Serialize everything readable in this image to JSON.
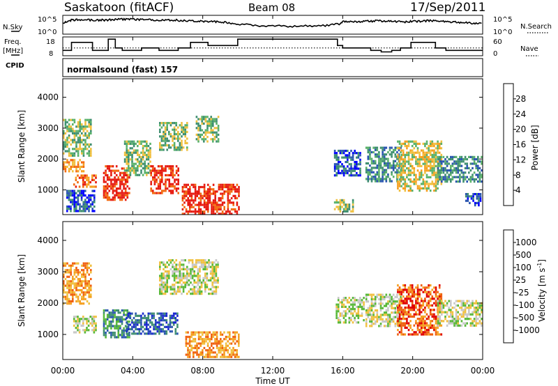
{
  "header": {
    "station": "Saskatoon (fitACF)",
    "beam": "Beam 08",
    "date": "17/Sep/2011"
  },
  "panel_labels": {
    "nsky": "N.Sky",
    "nsearch": "N.Search",
    "freq_line1": "Freq.",
    "freq_line2": "[MHz]",
    "nave": "Nave",
    "cpid": "CPID",
    "cpid_value": "normalsound (fast) 157"
  },
  "colors": {
    "power": [
      "#0000ff",
      "#2a55b0",
      "#3f8f70",
      "#5ab26a",
      "#f0c040",
      "#f5a020",
      "#f36a10",
      "#e61a10"
    ],
    "velocity": [
      "#e00000",
      "#f06010",
      "#f5a020",
      "#f0c040",
      "#c8c8c8",
      "#58b838",
      "#3f8f70",
      "#2a55b0",
      "#1a28d0"
    ]
  },
  "chart_data": [
    {
      "type": "line",
      "panel": "noise",
      "y_left_label": "N.Sky",
      "y_right_label": "N.Search",
      "y_left_ticks": [
        "10^5",
        "10^0"
      ],
      "y_right_ticks": [
        "10^5",
        "10^0"
      ],
      "x_hours": [
        0,
        0.3,
        0.6,
        1,
        1.5,
        2,
        2.5,
        3,
        3.5,
        4,
        4.5,
        5,
        5.5,
        6,
        6.5,
        7,
        7.5,
        8,
        8.5,
        9,
        9.5,
        10,
        11,
        12,
        13,
        14,
        15,
        15.8,
        16,
        16.5,
        17,
        17.5,
        18,
        18.5,
        19,
        19.5,
        20,
        20.5,
        21,
        21.5,
        22,
        22.5,
        23,
        23.5,
        24
      ],
      "sky_level": [
        0.55,
        0.75,
        0.8,
        0.82,
        0.8,
        0.78,
        0.8,
        0.82,
        0.85,
        0.83,
        0.82,
        0.8,
        0.78,
        0.8,
        0.78,
        0.76,
        0.74,
        0.72,
        0.7,
        0.68,
        0.62,
        0.55,
        0.45,
        0.42,
        0.4,
        0.42,
        0.45,
        0.55,
        0.72,
        0.7,
        0.68,
        0.72,
        0.75,
        0.72,
        0.7,
        0.68,
        0.7,
        0.72,
        0.75,
        0.72,
        0.7,
        0.66,
        0.62,
        0.6,
        0.58
      ]
    },
    {
      "type": "line",
      "panel": "frequency",
      "y_left_label": "Freq. [MHz]",
      "y_right_label": "Nave",
      "y_left_ticks": [
        "18",
        "8"
      ],
      "y_right_ticks": [
        "60",
        "0"
      ],
      "freq_steps": [
        {
          "from": 0.0,
          "to": 0.5,
          "value": 10.5
        },
        {
          "from": 0.5,
          "to": 1.7,
          "value": 15.5
        },
        {
          "from": 1.7,
          "to": 1.9,
          "value": 10.5
        },
        {
          "from": 1.9,
          "to": 2.6,
          "value": 10.5
        },
        {
          "from": 2.6,
          "to": 3.0,
          "value": 17.5
        },
        {
          "from": 3.0,
          "to": 3.4,
          "value": 12.0
        },
        {
          "from": 3.4,
          "to": 4.5,
          "value": 10.5
        },
        {
          "from": 4.5,
          "to": 5.5,
          "value": 12.0
        },
        {
          "from": 5.5,
          "to": 6.6,
          "value": 10.5
        },
        {
          "from": 6.6,
          "to": 7.3,
          "value": 12.0
        },
        {
          "from": 7.3,
          "to": 8.3,
          "value": 15.5
        },
        {
          "from": 8.3,
          "to": 10.0,
          "value": 13.5
        },
        {
          "from": 10.0,
          "to": 15.7,
          "value": 17.5
        },
        {
          "from": 15.7,
          "to": 16.0,
          "value": 13.5
        },
        {
          "from": 16.0,
          "to": 17.0,
          "value": 12.0
        },
        {
          "from": 17.0,
          "to": 17.6,
          "value": 12.0
        },
        {
          "from": 17.6,
          "to": 18.2,
          "value": 10.5
        },
        {
          "from": 18.2,
          "to": 18.8,
          "value": 9.5
        },
        {
          "from": 18.8,
          "to": 19.3,
          "value": 10.5
        },
        {
          "from": 19.3,
          "to": 19.9,
          "value": 12.0
        },
        {
          "from": 19.9,
          "to": 21.3,
          "value": 15.5
        },
        {
          "from": 21.3,
          "to": 21.9,
          "value": 12.0
        },
        {
          "from": 21.9,
          "to": 24.0,
          "value": 10.5
        }
      ],
      "nave_level": 12.0
    },
    {
      "type": "heatmap",
      "panel": "power",
      "ylabel": "Slant Range [km]",
      "x_range_hours": [
        0,
        24
      ],
      "ylim": [
        200,
        4600
      ],
      "y_ticks": [
        1000,
        2000,
        3000,
        4000
      ],
      "colorbar_label": "Power [dB]",
      "colorbar_ticks": [
        4,
        8,
        12,
        16,
        20,
        24,
        28
      ],
      "clusters": [
        {
          "t0": 0.0,
          "t1": 1.6,
          "r0": 2100,
          "r1": 3300,
          "level": 3
        },
        {
          "t0": 0.0,
          "t1": 1.2,
          "r0": 1600,
          "r1": 2000,
          "level": 5
        },
        {
          "t0": 0.6,
          "t1": 1.9,
          "r0": 1100,
          "r1": 1500,
          "level": 6
        },
        {
          "t0": 0.2,
          "t1": 1.8,
          "r0": 300,
          "r1": 1000,
          "level": 1
        },
        {
          "t0": 2.3,
          "t1": 3.8,
          "r0": 700,
          "r1": 1800,
          "level": 7
        },
        {
          "t0": 3.5,
          "t1": 5.0,
          "r0": 1500,
          "r1": 2600,
          "level": 3
        },
        {
          "t0": 5.0,
          "t1": 6.6,
          "r0": 900,
          "r1": 1800,
          "level": 7
        },
        {
          "t0": 5.5,
          "t1": 7.1,
          "r0": 2300,
          "r1": 3200,
          "level": 3
        },
        {
          "t0": 7.6,
          "t1": 8.9,
          "r0": 2600,
          "r1": 3400,
          "level": 3
        },
        {
          "t0": 6.8,
          "t1": 10.1,
          "r0": 250,
          "r1": 1200,
          "level": 7
        },
        {
          "t0": 15.5,
          "t1": 17.0,
          "r0": 1500,
          "r1": 2300,
          "level": 1
        },
        {
          "t0": 15.5,
          "t1": 16.6,
          "r0": 300,
          "r1": 700,
          "level": 3
        },
        {
          "t0": 17.3,
          "t1": 19.3,
          "r0": 1300,
          "r1": 2400,
          "level": 2
        },
        {
          "t0": 19.1,
          "t1": 21.6,
          "r0": 1000,
          "r1": 2600,
          "level": 4
        },
        {
          "t0": 21.4,
          "t1": 23.9,
          "r0": 1300,
          "r1": 2100,
          "level": 2
        },
        {
          "t0": 23.0,
          "t1": 23.9,
          "r0": 500,
          "r1": 900,
          "level": 1
        }
      ]
    },
    {
      "type": "heatmap",
      "panel": "velocity",
      "ylabel": "Slant Range [km]",
      "xlabel": "Time UT",
      "x_range_hours": [
        0,
        24
      ],
      "x_ticks": [
        "00:00",
        "04:00",
        "08:00",
        "12:00",
        "16:00",
        "20:00",
        "00:00"
      ],
      "ylim": [
        200,
        4600
      ],
      "y_ticks": [
        1000,
        2000,
        3000,
        4000
      ],
      "colorbar_label": "Velocity [m s^-1]",
      "colorbar_ticks": [
        "-1000",
        "-500",
        "-100",
        "-25",
        "25",
        "100",
        "500",
        "1000"
      ],
      "clusters": [
        {
          "t0": 0.0,
          "t1": 1.6,
          "r0": 2000,
          "r1": 3300,
          "level": 2
        },
        {
          "t0": 0.6,
          "t1": 1.9,
          "r0": 1100,
          "r1": 1600,
          "level": 4
        },
        {
          "t0": 2.3,
          "t1": 3.8,
          "r0": 900,
          "r1": 1800,
          "level": 6
        },
        {
          "t0": 3.6,
          "t1": 6.6,
          "r0": 1000,
          "r1": 1700,
          "level": 7
        },
        {
          "t0": 5.5,
          "t1": 8.9,
          "r0": 2300,
          "r1": 3400,
          "level": 4
        },
        {
          "t0": 7.0,
          "t1": 10.1,
          "r0": 250,
          "r1": 1100,
          "level": 2
        },
        {
          "t0": 15.6,
          "t1": 17.2,
          "r0": 1400,
          "r1": 2200,
          "level": 4
        },
        {
          "t0": 17.3,
          "t1": 19.3,
          "r0": 1300,
          "r1": 2300,
          "level": 4
        },
        {
          "t0": 19.1,
          "t1": 21.6,
          "r0": 1000,
          "r1": 2600,
          "level": 1
        },
        {
          "t0": 21.4,
          "t1": 23.9,
          "r0": 1300,
          "r1": 2100,
          "level": 4
        }
      ]
    }
  ]
}
